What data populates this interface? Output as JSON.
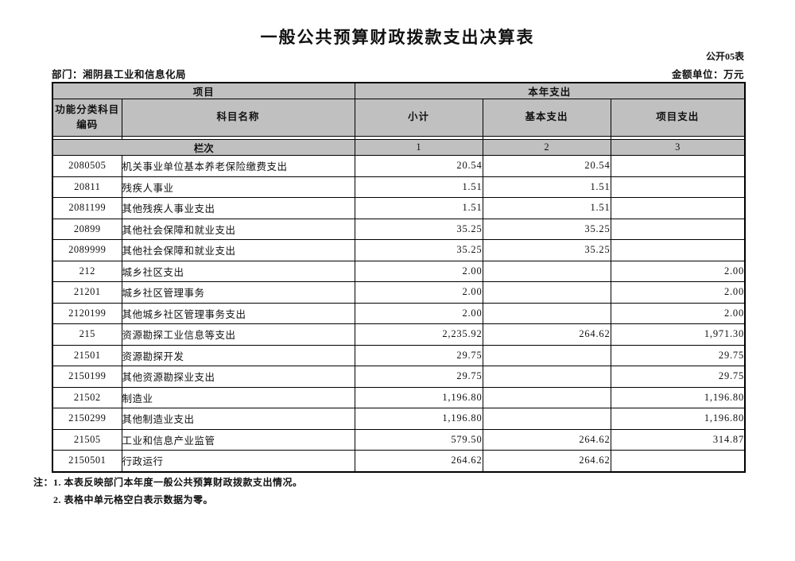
{
  "page": {
    "title": "一般公共预算财政拨款支出决算表",
    "table_code": "公开05表",
    "department": "部门：湘阴县工业和信息化局",
    "unit": "金额单位：万元"
  },
  "colors": {
    "header_bg": "#c0c0c0",
    "border": "#000000"
  },
  "table": {
    "header": {
      "group_item": "项目",
      "group_year_expense": "本年支出",
      "col_code": "功能分类科目编码",
      "col_name": "科目名称",
      "col_subtotal": "小计",
      "col_basic": "基本支出",
      "col_project": "项目支出",
      "lanci": "栏次",
      "num1": "1",
      "num2": "2",
      "num3": "3"
    },
    "rows": [
      {
        "code": "2080505",
        "name": "机关事业单位基本养老保险缴费支出",
        "subtotal": "20.54",
        "basic": "20.54",
        "project": ""
      },
      {
        "code": "20811",
        "name": "残疾人事业",
        "subtotal": "1.51",
        "basic": "1.51",
        "project": ""
      },
      {
        "code": "2081199",
        "name": "其他残疾人事业支出",
        "subtotal": "1.51",
        "basic": "1.51",
        "project": ""
      },
      {
        "code": "20899",
        "name": "其他社会保障和就业支出",
        "subtotal": "35.25",
        "basic": "35.25",
        "project": ""
      },
      {
        "code": "2089999",
        "name": "其他社会保障和就业支出",
        "subtotal": "35.25",
        "basic": "35.25",
        "project": ""
      },
      {
        "code": "212",
        "name": "城乡社区支出",
        "subtotal": "2.00",
        "basic": "",
        "project": "2.00"
      },
      {
        "code": "21201",
        "name": "城乡社区管理事务",
        "subtotal": "2.00",
        "basic": "",
        "project": "2.00"
      },
      {
        "code": "2120199",
        "name": "其他城乡社区管理事务支出",
        "subtotal": "2.00",
        "basic": "",
        "project": "2.00"
      },
      {
        "code": "215",
        "name": "资源勘探工业信息等支出",
        "subtotal": "2,235.92",
        "basic": "264.62",
        "project": "1,971.30"
      },
      {
        "code": "21501",
        "name": "资源勘探开发",
        "subtotal": "29.75",
        "basic": "",
        "project": "29.75"
      },
      {
        "code": "2150199",
        "name": "其他资源勘探业支出",
        "subtotal": "29.75",
        "basic": "",
        "project": "29.75"
      },
      {
        "code": "21502",
        "name": "制造业",
        "subtotal": "1,196.80",
        "basic": "",
        "project": "1,196.80"
      },
      {
        "code": "2150299",
        "name": "其他制造业支出",
        "subtotal": "1,196.80",
        "basic": "",
        "project": "1,196.80"
      },
      {
        "code": "21505",
        "name": "工业和信息产业监管",
        "subtotal": "579.50",
        "basic": "264.62",
        "project": "314.87"
      },
      {
        "code": "2150501",
        "name": "行政运行",
        "subtotal": "264.62",
        "basic": "264.62",
        "project": ""
      }
    ]
  },
  "notes": {
    "prefix": "注：",
    "line1": "1. 本表反映部门本年度一般公共预算财政拨款支出情况。",
    "line2": "2. 表格中单元格空白表示数据为零。"
  }
}
